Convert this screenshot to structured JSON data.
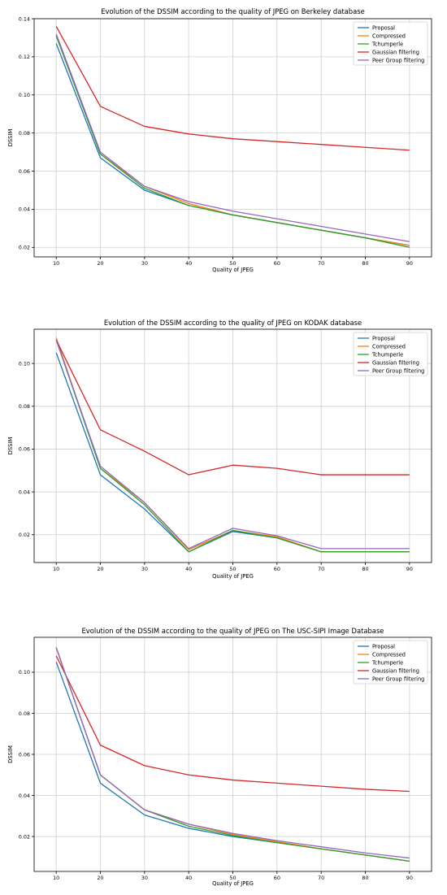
{
  "colors": {
    "Proposal": "#1f77b4",
    "Compressed": "#ff7f0e",
    "Tchumperle": "#2ca02c",
    "Gaussian filtering": "#d62728",
    "Peer Group filtering": "#9467bd",
    "grid": "#cfcfcf",
    "axes": "#000000"
  },
  "chart_data": [
    {
      "type": "line",
      "title": "Evolution of the DSSIM according to the quality of JPEG on Berkeley database",
      "xlabel": "Quality of JPEG",
      "ylabel": "DSSIM",
      "x": [
        10,
        20,
        30,
        40,
        50,
        60,
        70,
        80,
        90
      ],
      "xlim": [
        5,
        95
      ],
      "ylim": [
        0.015,
        0.14
      ],
      "yticks": [
        0.02,
        0.04,
        0.06,
        0.08,
        0.1,
        0.12,
        0.14
      ],
      "ytick_labels": [
        "0.02",
        "0.04",
        "0.06",
        "0.08",
        "0.10",
        "0.12",
        "0.14"
      ],
      "xticks": [
        10,
        20,
        30,
        40,
        50,
        60,
        70,
        80,
        90
      ],
      "xtick_labels": [
        "10",
        "20",
        "30",
        "40",
        "50",
        "60",
        "70",
        "80",
        "90"
      ],
      "grid": true,
      "legend_position": "top-right",
      "series": [
        {
          "name": "Proposal",
          "values": [
            0.127,
            0.067,
            0.05,
            0.042,
            0.037,
            0.033,
            0.029,
            0.025,
            0.021
          ]
        },
        {
          "name": "Compressed",
          "values": [
            0.131,
            0.069,
            0.052,
            0.043,
            0.037,
            0.033,
            0.029,
            0.025,
            0.021
          ]
        },
        {
          "name": "Tchumperle",
          "values": [
            0.131,
            0.069,
            0.051,
            0.042,
            0.037,
            0.033,
            0.029,
            0.025,
            0.02
          ]
        },
        {
          "name": "Gaussian filtering",
          "values": [
            0.136,
            0.094,
            0.0835,
            0.0795,
            0.077,
            0.0755,
            0.074,
            0.0725,
            0.071
          ]
        },
        {
          "name": "Peer Group filtering",
          "values": [
            0.132,
            0.07,
            0.052,
            0.044,
            0.039,
            0.035,
            0.031,
            0.027,
            0.023
          ]
        }
      ]
    },
    {
      "type": "line",
      "title": "Evolution of the DSSIM according to the quality of JPEG on KODAK database",
      "xlabel": "Quality of JPEG",
      "ylabel": "DSSIM",
      "x": [
        10,
        20,
        30,
        40,
        50,
        60,
        70,
        80,
        90
      ],
      "xlim": [
        5,
        95
      ],
      "ylim": [
        0.007,
        0.116
      ],
      "yticks": [
        0.02,
        0.04,
        0.06,
        0.08,
        0.1
      ],
      "ytick_labels": [
        "0.02",
        "0.04",
        "0.06",
        "0.08",
        "0.10"
      ],
      "xticks": [
        10,
        20,
        30,
        40,
        50,
        60,
        70,
        80,
        90
      ],
      "xtick_labels": [
        "10",
        "20",
        "30",
        "40",
        "50",
        "60",
        "70",
        "80",
        "90"
      ],
      "grid": true,
      "legend_position": "top-right",
      "series": [
        {
          "name": "Proposal",
          "values": [
            0.105,
            0.048,
            0.032,
            0.012,
            0.0215,
            0.0185,
            0.012,
            0.012,
            0.012
          ]
        },
        {
          "name": "Compressed",
          "values": [
            0.112,
            0.051,
            0.035,
            0.013,
            0.022,
            0.019,
            0.012,
            0.012,
            0.012
          ]
        },
        {
          "name": "Tchumperle",
          "values": [
            0.111,
            0.051,
            0.034,
            0.012,
            0.022,
            0.0185,
            0.012,
            0.012,
            0.012
          ]
        },
        {
          "name": "Gaussian filtering",
          "values": [
            0.111,
            0.069,
            0.059,
            0.048,
            0.0525,
            0.051,
            0.048,
            0.048,
            0.048
          ]
        },
        {
          "name": "Peer Group filtering",
          "values": [
            0.111,
            0.052,
            0.035,
            0.0135,
            0.023,
            0.0195,
            0.0135,
            0.0135,
            0.0135
          ]
        }
      ]
    },
    {
      "type": "line",
      "title": "Evolution of the DSSIM according to the quality of JPEG on The USC-SIPI Image Database",
      "xlabel": "Quality of JPEG",
      "ylabel": "DSSIM",
      "x": [
        10,
        20,
        30,
        40,
        50,
        60,
        70,
        80,
        90
      ],
      "xlim": [
        5,
        95
      ],
      "ylim": [
        0.003,
        0.117
      ],
      "yticks": [
        0.02,
        0.04,
        0.06,
        0.08,
        0.1
      ],
      "ytick_labels": [
        "0.02",
        "0.04",
        "0.06",
        "0.08",
        "0.10"
      ],
      "xticks": [
        10,
        20,
        30,
        40,
        50,
        60,
        70,
        80,
        90
      ],
      "xtick_labels": [
        "10",
        "20",
        "30",
        "40",
        "50",
        "60",
        "70",
        "80",
        "90"
      ],
      "grid": true,
      "legend_position": "top-right",
      "series": [
        {
          "name": "Proposal",
          "values": [
            0.105,
            0.046,
            0.0305,
            0.024,
            0.02,
            0.017,
            0.014,
            0.011,
            0.008
          ]
        },
        {
          "name": "Compressed",
          "values": [
            0.112,
            0.05,
            0.033,
            0.026,
            0.021,
            0.0175,
            0.014,
            0.011,
            0.008
          ]
        },
        {
          "name": "Tchumperle",
          "values": [
            0.112,
            0.05,
            0.033,
            0.025,
            0.0205,
            0.017,
            0.014,
            0.011,
            0.008
          ]
        },
        {
          "name": "Gaussian filtering",
          "values": [
            0.108,
            0.0645,
            0.0545,
            0.05,
            0.0475,
            0.046,
            0.0445,
            0.043,
            0.042
          ]
        },
        {
          "name": "Peer Group filtering",
          "values": [
            0.112,
            0.05,
            0.033,
            0.026,
            0.0215,
            0.018,
            0.015,
            0.012,
            0.0095
          ]
        }
      ]
    }
  ]
}
